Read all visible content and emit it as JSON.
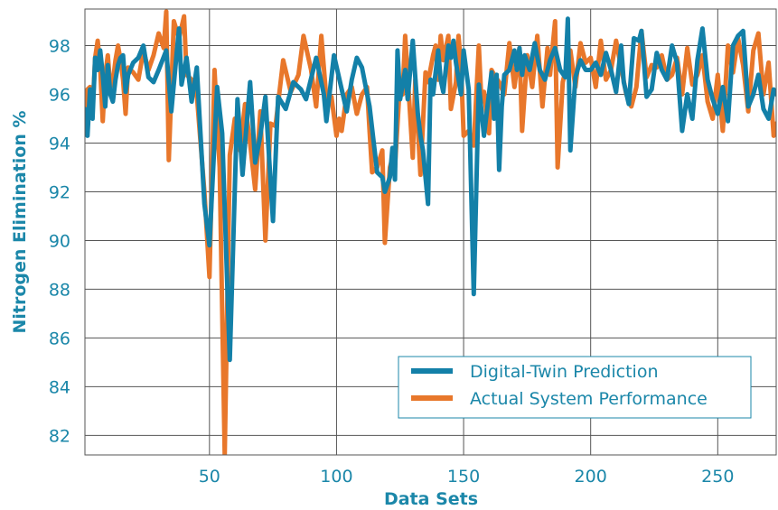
{
  "chart_data": {
    "type": "line",
    "title": "",
    "xlabel": "Data Sets",
    "ylabel": "Nitrogen Elimination %",
    "xlim": [
      1,
      273
    ],
    "ylim": [
      81.2,
      99.5
    ],
    "xticks": [
      50,
      100,
      150,
      200,
      250
    ],
    "yticks": [
      82,
      84,
      86,
      88,
      90,
      92,
      94,
      96,
      98
    ],
    "grid": true,
    "legend_position": "bottom-right",
    "series": [
      {
        "name": "Digital-Twin Prediction",
        "color": "#1380a8",
        "points": [
          [
            1,
            95.4
          ],
          [
            2,
            94.3
          ],
          [
            3,
            96.2
          ],
          [
            4,
            95.0
          ],
          [
            5,
            97.5
          ],
          [
            6,
            97.0
          ],
          [
            7,
            97.8
          ],
          [
            8,
            96.8
          ],
          [
            9,
            95.5
          ],
          [
            10,
            97.2
          ],
          [
            11,
            96.0
          ],
          [
            12,
            95.7
          ],
          [
            13,
            96.6
          ],
          [
            14,
            97.2
          ],
          [
            15,
            97.5
          ],
          [
            16,
            97.6
          ],
          [
            17,
            96.1
          ],
          [
            18,
            96.8
          ],
          [
            20,
            97.3
          ],
          [
            22,
            97.5
          ],
          [
            24,
            98.0
          ],
          [
            26,
            96.7
          ],
          [
            28,
            96.5
          ],
          [
            30,
            97.0
          ],
          [
            33,
            97.8
          ],
          [
            35,
            95.3
          ],
          [
            37,
            97.6
          ],
          [
            38,
            98.7
          ],
          [
            39,
            96.4
          ],
          [
            41,
            97.5
          ],
          [
            43,
            95.7
          ],
          [
            45,
            97.1
          ],
          [
            48,
            91.5
          ],
          [
            50,
            89.8
          ],
          [
            53,
            96.3
          ],
          [
            55,
            94.4
          ],
          [
            58,
            85.1
          ],
          [
            61,
            95.8
          ],
          [
            63,
            92.7
          ],
          [
            66,
            96.5
          ],
          [
            68,
            93.2
          ],
          [
            70,
            94.3
          ],
          [
            72,
            95.9
          ],
          [
            75,
            90.8
          ],
          [
            77,
            95.9
          ],
          [
            80,
            95.4
          ],
          [
            83,
            96.5
          ],
          [
            86,
            96.2
          ],
          [
            88,
            95.8
          ],
          [
            92,
            97.5
          ],
          [
            95,
            96.0
          ],
          [
            96,
            94.9
          ],
          [
            99,
            97.6
          ],
          [
            104,
            95.3
          ],
          [
            106,
            96.6
          ],
          [
            108,
            97.5
          ],
          [
            110,
            97.1
          ],
          [
            113,
            95.5
          ],
          [
            115,
            93.7
          ],
          [
            116,
            92.8
          ],
          [
            118,
            92.6
          ],
          [
            119,
            92.0
          ],
          [
            121,
            92.6
          ],
          [
            122,
            93.8
          ],
          [
            123,
            92.5
          ],
          [
            124,
            97.8
          ],
          [
            125,
            95.8
          ],
          [
            127,
            97.0
          ],
          [
            128,
            95.8
          ],
          [
            130,
            98.2
          ],
          [
            132,
            95.2
          ],
          [
            133,
            94.3
          ],
          [
            134,
            93.7
          ],
          [
            136,
            91.5
          ],
          [
            137,
            96.6
          ],
          [
            138,
            96.0
          ],
          [
            140,
            97.8
          ],
          [
            141,
            96.6
          ],
          [
            142,
            96.1
          ],
          [
            144,
            98.0
          ],
          [
            145,
            97.5
          ],
          [
            146,
            98.2
          ],
          [
            147,
            97.3
          ],
          [
            149,
            96.0
          ],
          [
            150,
            97.8
          ],
          [
            152,
            96.2
          ],
          [
            154,
            87.8
          ],
          [
            156,
            96.4
          ],
          [
            158,
            94.3
          ],
          [
            161,
            96.9
          ],
          [
            162,
            95.0
          ],
          [
            163,
            96.8
          ],
          [
            164,
            92.9
          ],
          [
            165,
            95.5
          ],
          [
            166,
            96.8
          ],
          [
            168,
            97.0
          ],
          [
            170,
            97.8
          ],
          [
            171,
            97.0
          ],
          [
            172,
            97.9
          ],
          [
            173,
            96.8
          ],
          [
            174,
            97.6
          ],
          [
            176,
            97.0
          ],
          [
            178,
            98.1
          ],
          [
            180,
            97.0
          ],
          [
            182,
            96.6
          ],
          [
            184,
            97.4
          ],
          [
            186,
            97.9
          ],
          [
            188,
            97.0
          ],
          [
            190,
            96.7
          ],
          [
            191,
            99.1
          ],
          [
            192,
            93.7
          ],
          [
            194,
            96.7
          ],
          [
            196,
            97.4
          ],
          [
            198,
            97.0
          ],
          [
            200,
            97.0
          ],
          [
            202,
            97.3
          ],
          [
            204,
            96.8
          ],
          [
            206,
            97.7
          ],
          [
            208,
            97.0
          ],
          [
            210,
            96.1
          ],
          [
            212,
            98.0
          ],
          [
            213,
            96.5
          ],
          [
            215,
            95.6
          ],
          [
            217,
            98.3
          ],
          [
            219,
            98.2
          ],
          [
            220,
            98.6
          ],
          [
            222,
            95.9
          ],
          [
            224,
            96.2
          ],
          [
            226,
            97.7
          ],
          [
            228,
            97.0
          ],
          [
            230,
            96.6
          ],
          [
            232,
            98.0
          ],
          [
            234,
            97.3
          ],
          [
            236,
            94.5
          ],
          [
            238,
            96.0
          ],
          [
            240,
            95.0
          ],
          [
            242,
            97.4
          ],
          [
            244,
            98.7
          ],
          [
            246,
            96.6
          ],
          [
            248,
            95.8
          ],
          [
            250,
            95.2
          ],
          [
            252,
            96.3
          ],
          [
            254,
            94.9
          ],
          [
            256,
            98.0
          ],
          [
            258,
            98.4
          ],
          [
            260,
            98.6
          ],
          [
            262,
            95.5
          ],
          [
            264,
            96.0
          ],
          [
            266,
            96.8
          ],
          [
            268,
            95.4
          ],
          [
            270,
            95.0
          ],
          [
            272,
            96.2
          ],
          [
            273,
            96.0
          ]
        ]
      },
      {
        "name": "Actual System Performance",
        "color": "#e8772b",
        "points": [
          [
            1,
            94.7
          ],
          [
            2,
            96.2
          ],
          [
            3,
            96.3
          ],
          [
            4,
            95.3
          ],
          [
            5,
            97.5
          ],
          [
            6,
            98.2
          ],
          [
            7,
            97.1
          ],
          [
            8,
            94.9
          ],
          [
            9,
            96.8
          ],
          [
            10,
            97.6
          ],
          [
            11,
            96.3
          ],
          [
            12,
            96.5
          ],
          [
            13,
            97.4
          ],
          [
            14,
            98.0
          ],
          [
            15,
            97.4
          ],
          [
            16,
            96.6
          ],
          [
            17,
            95.2
          ],
          [
            18,
            97.1
          ],
          [
            20,
            96.9
          ],
          [
            22,
            96.6
          ],
          [
            24,
            97.8
          ],
          [
            26,
            97.0
          ],
          [
            28,
            97.6
          ],
          [
            30,
            98.5
          ],
          [
            32,
            97.9
          ],
          [
            33,
            99.4
          ],
          [
            34,
            93.3
          ],
          [
            36,
            99.0
          ],
          [
            38,
            98.3
          ],
          [
            40,
            99.2
          ],
          [
            41,
            96.8
          ],
          [
            43,
            96.6
          ],
          [
            45,
            96.0
          ],
          [
            48,
            92.0
          ],
          [
            50,
            88.5
          ],
          [
            52,
            97.0
          ],
          [
            54,
            93.0
          ],
          [
            56,
            81.2
          ],
          [
            58,
            93.5
          ],
          [
            60,
            95.0
          ],
          [
            62,
            93.7
          ],
          [
            64,
            95.6
          ],
          [
            66,
            94.0
          ],
          [
            68,
            92.1
          ],
          [
            70,
            95.3
          ],
          [
            72,
            90.0
          ],
          [
            74,
            94.8
          ],
          [
            76,
            94.7
          ],
          [
            79,
            97.4
          ],
          [
            82,
            96.1
          ],
          [
            85,
            96.8
          ],
          [
            87,
            98.4
          ],
          [
            90,
            97.0
          ],
          [
            92,
            95.5
          ],
          [
            94,
            98.4
          ],
          [
            96,
            95.8
          ],
          [
            98,
            95.9
          ],
          [
            100,
            94.3
          ],
          [
            101,
            95.0
          ],
          [
            102,
            94.5
          ],
          [
            104,
            96.0
          ],
          [
            106,
            96.3
          ],
          [
            108,
            95.2
          ],
          [
            110,
            96.0
          ],
          [
            112,
            96.3
          ],
          [
            113,
            94.5
          ],
          [
            114,
            92.8
          ],
          [
            116,
            93.0
          ],
          [
            118,
            93.7
          ],
          [
            119,
            89.9
          ],
          [
            121,
            93.0
          ],
          [
            122,
            93.4
          ],
          [
            123,
            93.0
          ],
          [
            125,
            96.6
          ],
          [
            126,
            96.0
          ],
          [
            127,
            98.4
          ],
          [
            129,
            95.1
          ],
          [
            130,
            93.4
          ],
          [
            131,
            96.6
          ],
          [
            133,
            92.7
          ],
          [
            135,
            96.9
          ],
          [
            136,
            96.5
          ],
          [
            138,
            97.6
          ],
          [
            139,
            98.0
          ],
          [
            140,
            96.6
          ],
          [
            141,
            98.4
          ],
          [
            142,
            97.4
          ],
          [
            144,
            98.4
          ],
          [
            145,
            95.4
          ],
          [
            147,
            96.5
          ],
          [
            148,
            98.4
          ],
          [
            149,
            97.2
          ],
          [
            150,
            94.3
          ],
          [
            152,
            94.5
          ],
          [
            154,
            93.9
          ],
          [
            156,
            98.0
          ],
          [
            157,
            95.7
          ],
          [
            158,
            96.1
          ],
          [
            160,
            94.4
          ],
          [
            161,
            97.0
          ],
          [
            162,
            96.8
          ],
          [
            164,
            96.5
          ],
          [
            166,
            96.0
          ],
          [
            168,
            98.1
          ],
          [
            170,
            96.3
          ],
          [
            172,
            97.9
          ],
          [
            173,
            94.5
          ],
          [
            175,
            97.6
          ],
          [
            177,
            96.3
          ],
          [
            179,
            98.4
          ],
          [
            181,
            95.5
          ],
          [
            183,
            97.9
          ],
          [
            184,
            96.8
          ],
          [
            186,
            99.0
          ],
          [
            187,
            93.0
          ],
          [
            189,
            96.5
          ],
          [
            192,
            97.8
          ],
          [
            194,
            96.3
          ],
          [
            196,
            98.1
          ],
          [
            198,
            97.3
          ],
          [
            200,
            97.5
          ],
          [
            202,
            96.3
          ],
          [
            204,
            98.2
          ],
          [
            206,
            96.6
          ],
          [
            208,
            97.0
          ],
          [
            210,
            98.2
          ],
          [
            212,
            97.1
          ],
          [
            214,
            96.0
          ],
          [
            216,
            95.5
          ],
          [
            218,
            96.3
          ],
          [
            220,
            98.6
          ],
          [
            222,
            96.7
          ],
          [
            224,
            97.2
          ],
          [
            226,
            97.1
          ],
          [
            228,
            97.6
          ],
          [
            230,
            96.6
          ],
          [
            232,
            96.8
          ],
          [
            234,
            97.5
          ],
          [
            236,
            96.0
          ],
          [
            238,
            97.9
          ],
          [
            240,
            96.4
          ],
          [
            242,
            96.8
          ],
          [
            244,
            97.6
          ],
          [
            246,
            95.7
          ],
          [
            248,
            95.0
          ],
          [
            250,
            96.8
          ],
          [
            252,
            94.5
          ],
          [
            254,
            98.0
          ],
          [
            256,
            96.9
          ],
          [
            258,
            98.3
          ],
          [
            260,
            97.2
          ],
          [
            262,
            95.3
          ],
          [
            264,
            97.8
          ],
          [
            266,
            98.5
          ],
          [
            268,
            96.0
          ],
          [
            270,
            97.3
          ],
          [
            272,
            94.3
          ],
          [
            273,
            94.8
          ]
        ]
      }
    ]
  }
}
